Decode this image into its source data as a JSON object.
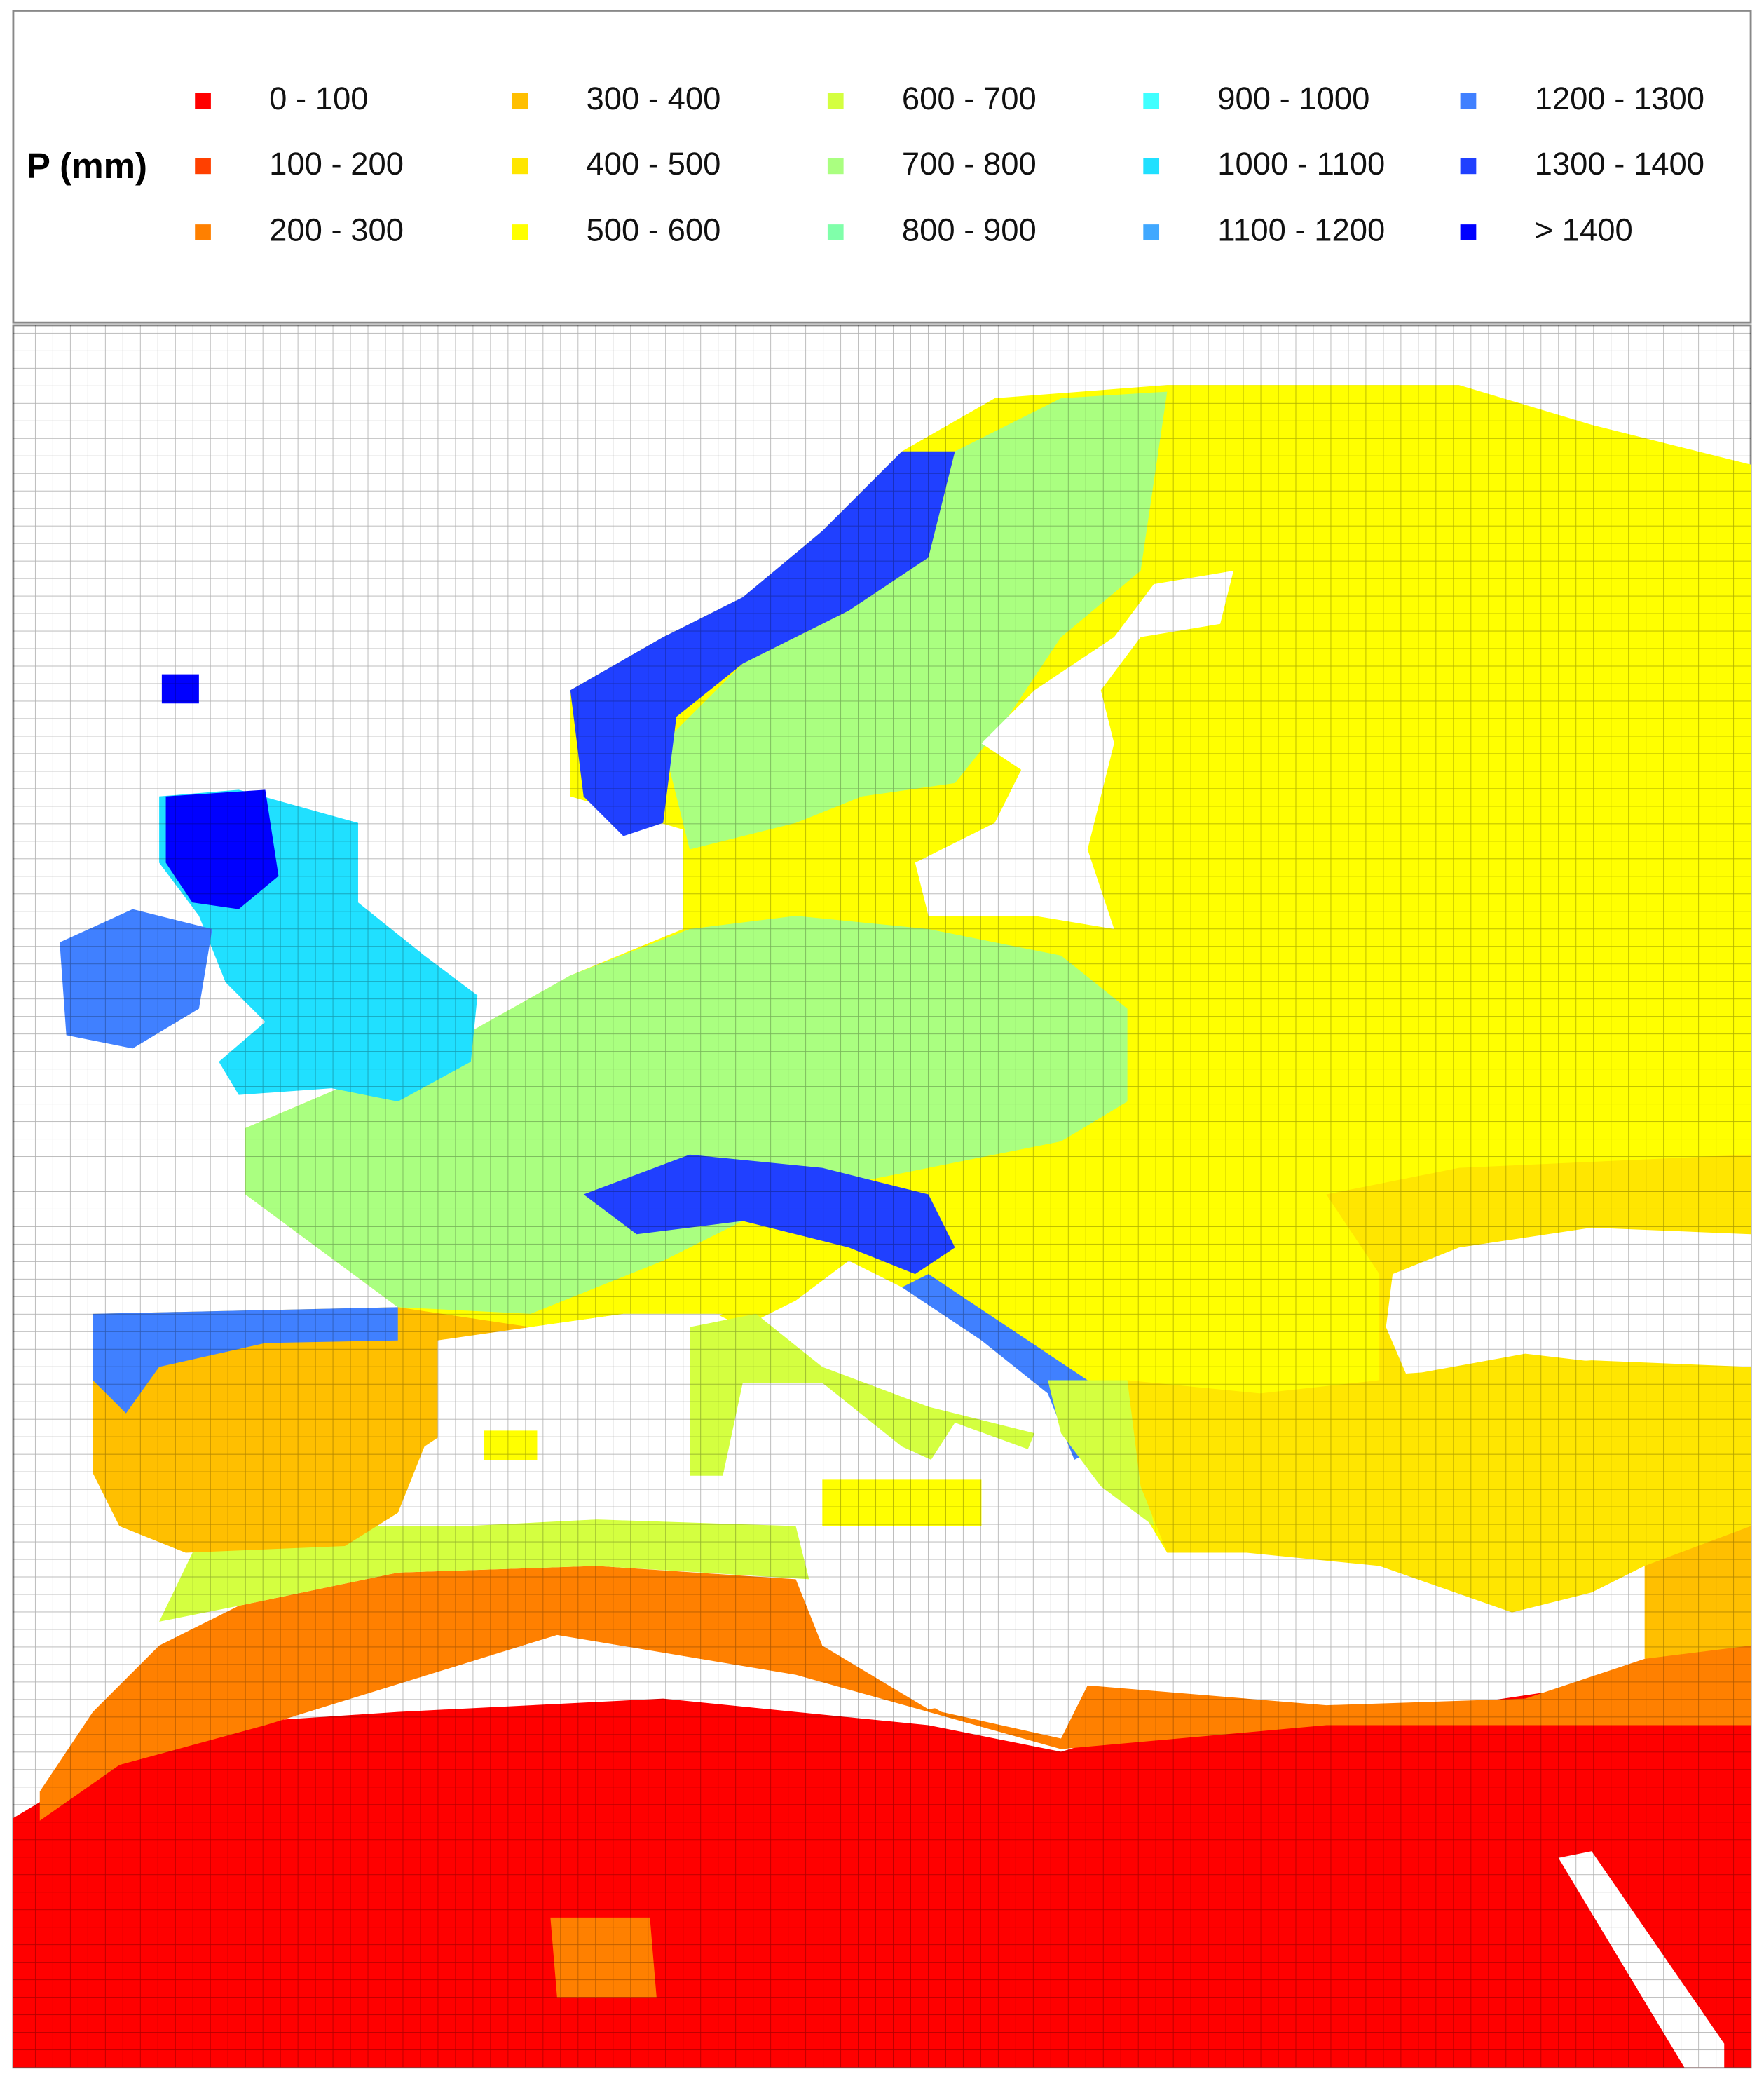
{
  "legend": {
    "title": "P (mm)",
    "items": [
      {
        "label": "0 - 100",
        "color": "#ff0000"
      },
      {
        "label": "100 - 200",
        "color": "#ff4000"
      },
      {
        "label": "200 - 300",
        "color": "#ff8000"
      },
      {
        "label": "300 - 400",
        "color": "#ffbf00"
      },
      {
        "label": "400 - 500",
        "color": "#ffe600"
      },
      {
        "label": "500 - 600",
        "color": "#ffff00"
      },
      {
        "label": "600 - 700",
        "color": "#d4ff40"
      },
      {
        "label": "700 - 800",
        "color": "#aaff80"
      },
      {
        "label": "800 - 900",
        "color": "#80ffaa"
      },
      {
        "label": "900 - 1000",
        "color": "#40ffff"
      },
      {
        "label": "1000 - 1100",
        "color": "#20e0ff"
      },
      {
        "label": "1100 - 1200",
        "color": "#40a8ff"
      },
      {
        "label": "1200 - 1300",
        "color": "#4080ff"
      },
      {
        "label": "1300 - 1400",
        "color": "#2040ff"
      },
      {
        "label": "> 1400",
        "color": "#0000ff"
      }
    ]
  }
}
